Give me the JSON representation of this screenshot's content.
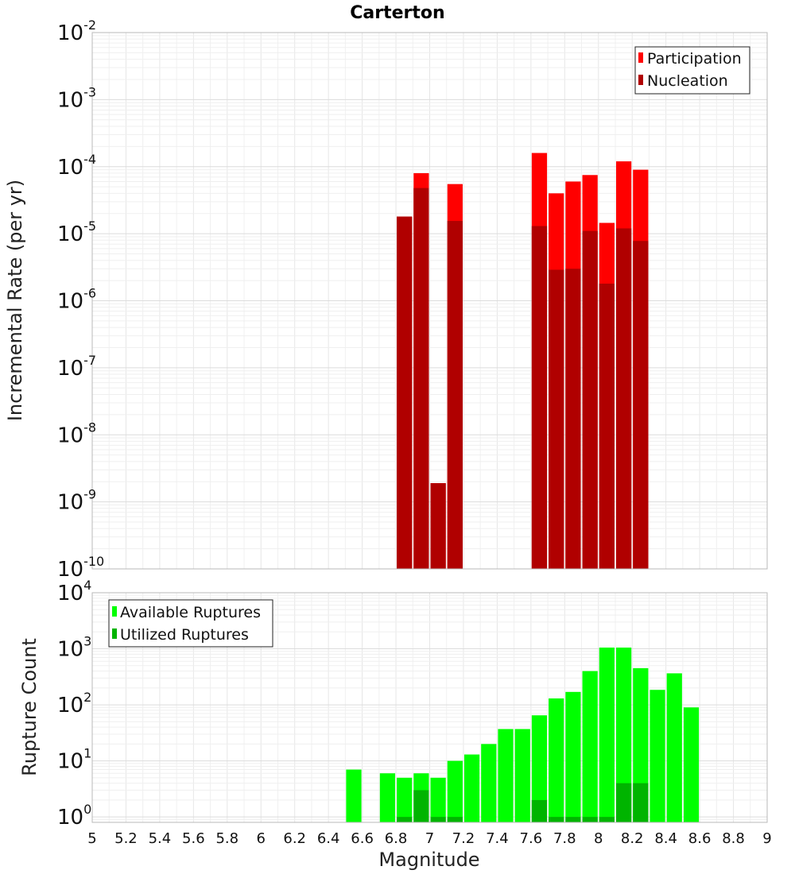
{
  "chart_data": [
    {
      "type": "bar",
      "title": "Carterton",
      "xlabel": "",
      "ylabel": "Incremental Rate (per yr)",
      "yscale": "log",
      "ylim": [
        1e-10,
        0.01
      ],
      "xlim": [
        5,
        9
      ],
      "grid": true,
      "legend_position": "top-right",
      "series": [
        {
          "name": "Participation",
          "color": "#ff0000",
          "x": [
            6.85,
            6.95,
            7.05,
            7.15,
            7.65,
            7.75,
            7.85,
            7.95,
            8.05,
            8.15,
            8.25
          ],
          "values": [
            1.8e-05,
            8e-05,
            1.9e-09,
            5.5e-05,
            0.00016,
            4e-05,
            6e-05,
            7.5e-05,
            1.45e-05,
            0.00012,
            9e-05
          ]
        },
        {
          "name": "Nucleation",
          "color": "#b00000",
          "x": [
            6.85,
            6.95,
            7.05,
            7.15,
            7.65,
            7.75,
            7.85,
            7.95,
            8.05,
            8.15,
            8.25
          ],
          "values": [
            1.8e-05,
            4.8e-05,
            1.9e-09,
            1.55e-05,
            1.3e-05,
            2.9e-06,
            3e-06,
            1.1e-05,
            1.8e-06,
            1.2e-05,
            7.8e-06
          ]
        }
      ]
    },
    {
      "type": "bar",
      "title": "",
      "xlabel": "Magnitude",
      "ylabel": "Rupture Count",
      "yscale": "log",
      "ylim": [
        0.8,
        10000
      ],
      "xlim": [
        5,
        9
      ],
      "grid": true,
      "legend_position": "top-left",
      "xticks": [
        "5",
        "5.2",
        "5.4",
        "5.6",
        "5.8",
        "6",
        "6.2",
        "6.4",
        "6.6",
        "6.8",
        "7",
        "7.2",
        "7.4",
        "7.6",
        "7.8",
        "8",
        "8.2",
        "8.4",
        "8.6",
        "8.8",
        "9"
      ],
      "series": [
        {
          "name": "Available Ruptures",
          "color": "#00ff00",
          "x": [
            6.55,
            6.75,
            6.85,
            6.95,
            7.05,
            7.15,
            7.25,
            7.35,
            7.45,
            7.55,
            7.65,
            7.75,
            7.85,
            7.95,
            8.05,
            8.15,
            8.25,
            8.35,
            8.45,
            8.55
          ],
          "values": [
            7,
            6,
            5,
            6,
            5,
            10,
            13,
            20,
            37,
            37,
            65,
            130,
            170,
            400,
            1050,
            1050,
            450,
            185,
            365,
            90
          ]
        },
        {
          "name": "Utilized Ruptures",
          "color": "#00b400",
          "x": [
            6.85,
            6.95,
            7.05,
            7.15,
            7.65,
            7.75,
            7.85,
            7.95,
            8.05,
            8.15,
            8.25
          ],
          "values": [
            1,
            3,
            1,
            1,
            2,
            1,
            1,
            1,
            1,
            4,
            4
          ]
        }
      ]
    }
  ]
}
